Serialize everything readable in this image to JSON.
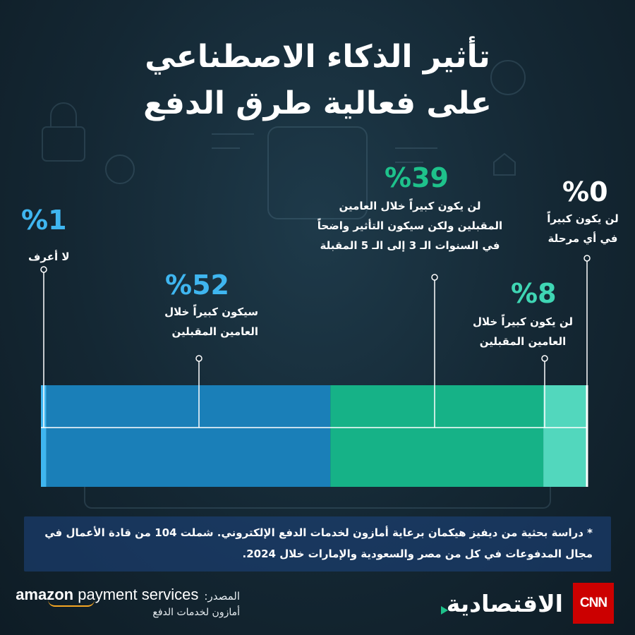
{
  "title": {
    "line1": "تأثير الذكاء الاصطناعي",
    "line2": "على فعالية طرق الدفع"
  },
  "chart_data": {
    "type": "bar",
    "orientation": "horizontal-stacked",
    "series": [
      {
        "value": 1,
        "value_label": "%1",
        "label_lines": [
          "لا أعرف"
        ],
        "color": "#3fb6f0"
      },
      {
        "value": 52,
        "value_label": "%52",
        "label_lines": [
          "سيكون كبيراً خلال",
          "العامين المقبلين"
        ],
        "color": "#1a7fb8"
      },
      {
        "value": 39,
        "value_label": "%39",
        "label_lines": [
          "لن يكون كبيراً خلال العامين",
          "المقبلين ولكن سيكون التأثير واضحاً",
          "في السنوات الـ 3 إلى الـ 5 المقبلة"
        ],
        "color": "#16b287"
      },
      {
        "value": 8,
        "value_label": "%8",
        "label_lines": [
          "لن يكون كبيراً خلال",
          "العامين المقبلين"
        ],
        "color": "#52d7bd"
      },
      {
        "value": 0,
        "value_label": "%0",
        "label_lines": [
          "لن يكون كبيراً",
          "في أي مرحلة"
        ],
        "color": "#ffffff"
      }
    ],
    "value_label_colors": [
      "#3fb6f0",
      "#3fb6f0",
      "#1ec28b",
      "#3fd6b4",
      "#ffffff"
    ]
  },
  "note": "* دراسة بحثية من ديفيز هيكمان برعاية أمازون لخدمات الدفع الإلكتروني. شملت 104 من قادة الأعمال في مجال المدفوعات في كل من مصر والسعودية والإمارات خلال 2024.",
  "source": {
    "label": "المصدر:",
    "brand": "amazon payment services",
    "brand_bold": "amazon",
    "brand_rest": " payment services",
    "sub": "أمازون لخدمات الدفع"
  },
  "logo": {
    "publisher": "الاقتصادية",
    "network": "CNN"
  }
}
